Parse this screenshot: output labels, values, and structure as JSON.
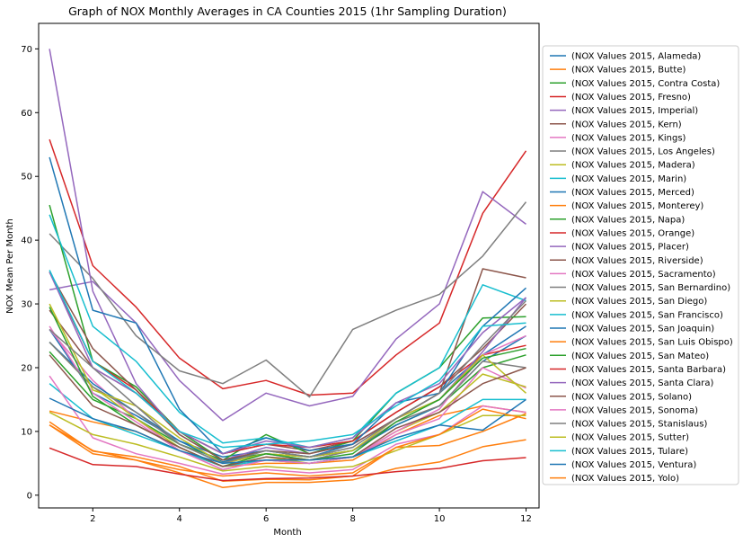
{
  "chart_data": {
    "type": "line",
    "title": "Graph of NOX Monthly Averages in CA Counties 2015 (1hr Sampling Duration)",
    "xlabel": "Month",
    "ylabel": "NOX Mean Per Month",
    "x": [
      1,
      2,
      3,
      4,
      5,
      6,
      7,
      8,
      9,
      10,
      11,
      12
    ],
    "xlim": [
      0.75,
      12.3
    ],
    "ylim": [
      -2,
      74
    ],
    "xticks": [
      2,
      4,
      6,
      8,
      10,
      12
    ],
    "yticks": [
      0,
      10,
      20,
      30,
      40,
      50,
      60,
      70
    ],
    "grid": false,
    "legend_position": "outside-right",
    "series": [
      {
        "name": "(NOX Values 2015, Alameda)",
        "color": "#1f77b4",
        "values": [
          26.0,
          16.0,
          12.5,
          8.5,
          6.0,
          7.0,
          6.0,
          8.0,
          12.0,
          16.0,
          22.0,
          26.5
        ]
      },
      {
        "name": "(NOX Values 2015, Butte)",
        "color": "#ff7f0e",
        "values": [
          13.2,
          11.5,
          10.0,
          7.0,
          4.5,
          5.0,
          5.0,
          5.5,
          9.5,
          12.5,
          14.0,
          13.0
        ]
      },
      {
        "name": "(NOX Values 2015, Contra Costa)",
        "color": "#2ca02c",
        "values": [
          22.5,
          15.0,
          12.0,
          8.0,
          5.5,
          6.5,
          6.0,
          7.0,
          11.0,
          14.0,
          20.0,
          22.0
        ]
      },
      {
        "name": "(NOX Values 2015, Fresno)",
        "color": "#d62728",
        "values": [
          55.8,
          36.0,
          29.5,
          21.5,
          16.7,
          18.0,
          15.7,
          16.0,
          22.0,
          27.0,
          44.2,
          54.0
        ]
      },
      {
        "name": "(NOX Values 2015, Imperial)",
        "color": "#9467bd",
        "values": [
          32.2,
          33.5,
          27.0,
          18.0,
          11.7,
          16.0,
          14.0,
          15.5,
          24.5,
          30.0,
          47.6,
          42.5
        ]
      },
      {
        "name": "(NOX Values 2015, Kern)",
        "color": "#8c564b",
        "values": [
          29.0,
          20.0,
          16.0,
          10.0,
          6.5,
          8.0,
          7.0,
          8.5,
          13.0,
          17.0,
          23.0,
          30.0
        ]
      },
      {
        "name": "(NOX Values 2015, Kings)",
        "color": "#e377c2",
        "values": [
          26.0,
          18.0,
          12.0,
          7.0,
          4.0,
          5.5,
          5.0,
          6.0,
          9.5,
          12.0,
          20.0,
          16.8
        ]
      },
      {
        "name": "(NOX Values 2015, Los Angeles)",
        "color": "#7f7f7f",
        "values": [
          41.0,
          34.0,
          25.0,
          19.5,
          17.5,
          21.2,
          15.4,
          26.0,
          29.0,
          31.5,
          37.5,
          46.0
        ]
      },
      {
        "name": "(NOX Values 2015, Madera)",
        "color": "#bcbd22",
        "values": [
          24.0,
          17.0,
          12.0,
          7.5,
          4.5,
          6.0,
          5.0,
          6.0,
          10.0,
          13.0,
          19.0,
          17.0
        ]
      },
      {
        "name": "(NOX Values 2015, Marin)",
        "color": "#17becf",
        "values": [
          17.5,
          12.0,
          9.5,
          7.0,
          4.5,
          5.5,
          5.0,
          6.0,
          8.5,
          11.0,
          15.0,
          15.0
        ]
      },
      {
        "name": "(NOX Values 2015, Merced)",
        "color": "#1f77b4",
        "values": [
          24.0,
          17.5,
          13.0,
          8.5,
          5.2,
          7.0,
          6.0,
          7.0,
          11.0,
          14.0,
          21.0,
          25.0
        ]
      },
      {
        "name": "(NOX Values 2015, Monterey)",
        "color": "#ff7f0e",
        "values": [
          11.0,
          7.0,
          5.5,
          3.5,
          1.2,
          2.0,
          2.0,
          2.4,
          4.2,
          5.2,
          7.6,
          8.7
        ]
      },
      {
        "name": "(NOX Values 2015, Napa)",
        "color": "#2ca02c",
        "values": [
          45.5,
          21.0,
          17.0,
          10.0,
          5.5,
          9.5,
          6.5,
          8.5,
          16.0,
          20.0,
          27.8,
          28.0
        ]
      },
      {
        "name": "(NOX Values 2015, Orange)",
        "color": "#d62728",
        "values": [
          35.0,
          21.0,
          16.5,
          10.0,
          6.5,
          8.0,
          7.5,
          8.5,
          13.0,
          17.0,
          22.0,
          23.5
        ]
      },
      {
        "name": "(NOX Values 2015, Placer)",
        "color": "#9467bd",
        "values": [
          70.0,
          32.0,
          17.5,
          9.5,
          5.5,
          7.5,
          6.5,
          8.0,
          12.0,
          15.0,
          22.5,
          31.0
        ]
      },
      {
        "name": "(NOX Values 2015, Riverside)",
        "color": "#8c564b",
        "values": [
          35.0,
          23.0,
          16.5,
          9.5,
          5.5,
          7.0,
          6.5,
          8.0,
          12.0,
          16.0,
          35.5,
          34.1
        ]
      },
      {
        "name": "(NOX Values 2015, Sacramento)",
        "color": "#e377c2",
        "values": [
          26.5,
          16.0,
          11.5,
          7.0,
          4.0,
          5.5,
          5.0,
          6.0,
          10.0,
          13.5,
          22.0,
          25.0
        ]
      },
      {
        "name": "(NOX Values 2015, San Bernardino)",
        "color": "#7f7f7f",
        "values": [
          24.0,
          17.0,
          13.0,
          8.0,
          5.0,
          6.5,
          5.5,
          7.0,
          11.5,
          14.0,
          21.0,
          20.0
        ]
      },
      {
        "name": "(NOX Values 2015, San Diego)",
        "color": "#bcbd22",
        "values": [
          30.0,
          16.5,
          14.0,
          9.0,
          5.0,
          6.5,
          6.0,
          7.0,
          12.0,
          15.0,
          22.0,
          16.0
        ]
      },
      {
        "name": "(NOX Values 2015, San Francisco)",
        "color": "#17becf",
        "values": [
          44.0,
          26.5,
          21.0,
          13.0,
          8.2,
          9.0,
          7.5,
          9.0,
          16.0,
          20.0,
          33.0,
          30.5
        ]
      },
      {
        "name": "(NOX Values 2015, San Joaquin)",
        "color": "#1f77b4",
        "values": [
          53.0,
          29.0,
          27.0,
          13.5,
          6.5,
          9.0,
          7.0,
          8.0,
          14.5,
          16.0,
          26.5,
          32.5
        ]
      },
      {
        "name": "(NOX Values 2015, San Luis Obispo)",
        "color": "#ff7f0e",
        "values": [
          11.5,
          6.9,
          6.0,
          4.5,
          2.2,
          2.5,
          2.4,
          3.0,
          7.5,
          7.8,
          10.0,
          12.8
        ]
      },
      {
        "name": "(NOX Values 2015, San Mateo)",
        "color": "#2ca02c",
        "values": [
          29.5,
          15.5,
          11.0,
          7.5,
          4.5,
          6.5,
          5.5,
          6.5,
          11.5,
          15.0,
          21.5,
          23.0
        ]
      },
      {
        "name": "(NOX Values 2015, Santa Barbara)",
        "color": "#d62728",
        "values": [
          7.4,
          4.8,
          4.5,
          3.3,
          2.3,
          2.6,
          2.7,
          3.0,
          3.7,
          4.2,
          5.4,
          5.9
        ]
      },
      {
        "name": "(NOX Values 2015, Santa Clara)",
        "color": "#9467bd",
        "values": [
          35.0,
          20.0,
          16.0,
          10.0,
          6.5,
          8.5,
          7.5,
          9.0,
          14.5,
          17.5,
          25.5,
          31.0
        ]
      },
      {
        "name": "(NOX Values 2015, Solano)",
        "color": "#8c564b",
        "values": [
          22.0,
          14.0,
          11.0,
          7.5,
          4.5,
          6.0,
          5.5,
          6.0,
          10.5,
          13.0,
          17.5,
          20.0
        ]
      },
      {
        "name": "(NOX Values 2015, Sonoma)",
        "color": "#e377c2",
        "values": [
          18.7,
          9.0,
          6.5,
          5.0,
          3.3,
          4.0,
          3.5,
          4.0,
          8.0,
          9.5,
          14.0,
          13.0
        ]
      },
      {
        "name": "(NOX Values 2015, Stanislaus)",
        "color": "#7f7f7f",
        "values": [
          26.0,
          20.0,
          14.0,
          8.0,
          5.0,
          7.0,
          6.0,
          7.5,
          12.0,
          16.0,
          23.5,
          30.5
        ]
      },
      {
        "name": "(NOX Values 2015, Sutter)",
        "color": "#bcbd22",
        "values": [
          13.0,
          9.5,
          8.0,
          6.0,
          3.8,
          4.5,
          4.0,
          4.5,
          7.0,
          9.5,
          12.5,
          12.5
        ]
      },
      {
        "name": "(NOX Values 2015, Tulare)",
        "color": "#17becf",
        "values": [
          35.3,
          21.0,
          16.0,
          10.0,
          7.5,
          8.0,
          8.5,
          9.5,
          14.0,
          18.0,
          26.5,
          27.0
        ]
      },
      {
        "name": "(NOX Values 2015, Ventura)",
        "color": "#1f77b4",
        "values": [
          15.2,
          12.0,
          10.0,
          7.0,
          5.0,
          5.5,
          5.5,
          6.0,
          9.0,
          11.0,
          10.2,
          15.0
        ]
      },
      {
        "name": "(NOX Values 2015, Yolo)",
        "color": "#ff7f0e",
        "values": [
          11.0,
          6.5,
          5.5,
          4.0,
          3.0,
          3.5,
          3.0,
          3.5,
          7.5,
          9.5,
          13.5,
          12.0
        ]
      }
    ]
  }
}
